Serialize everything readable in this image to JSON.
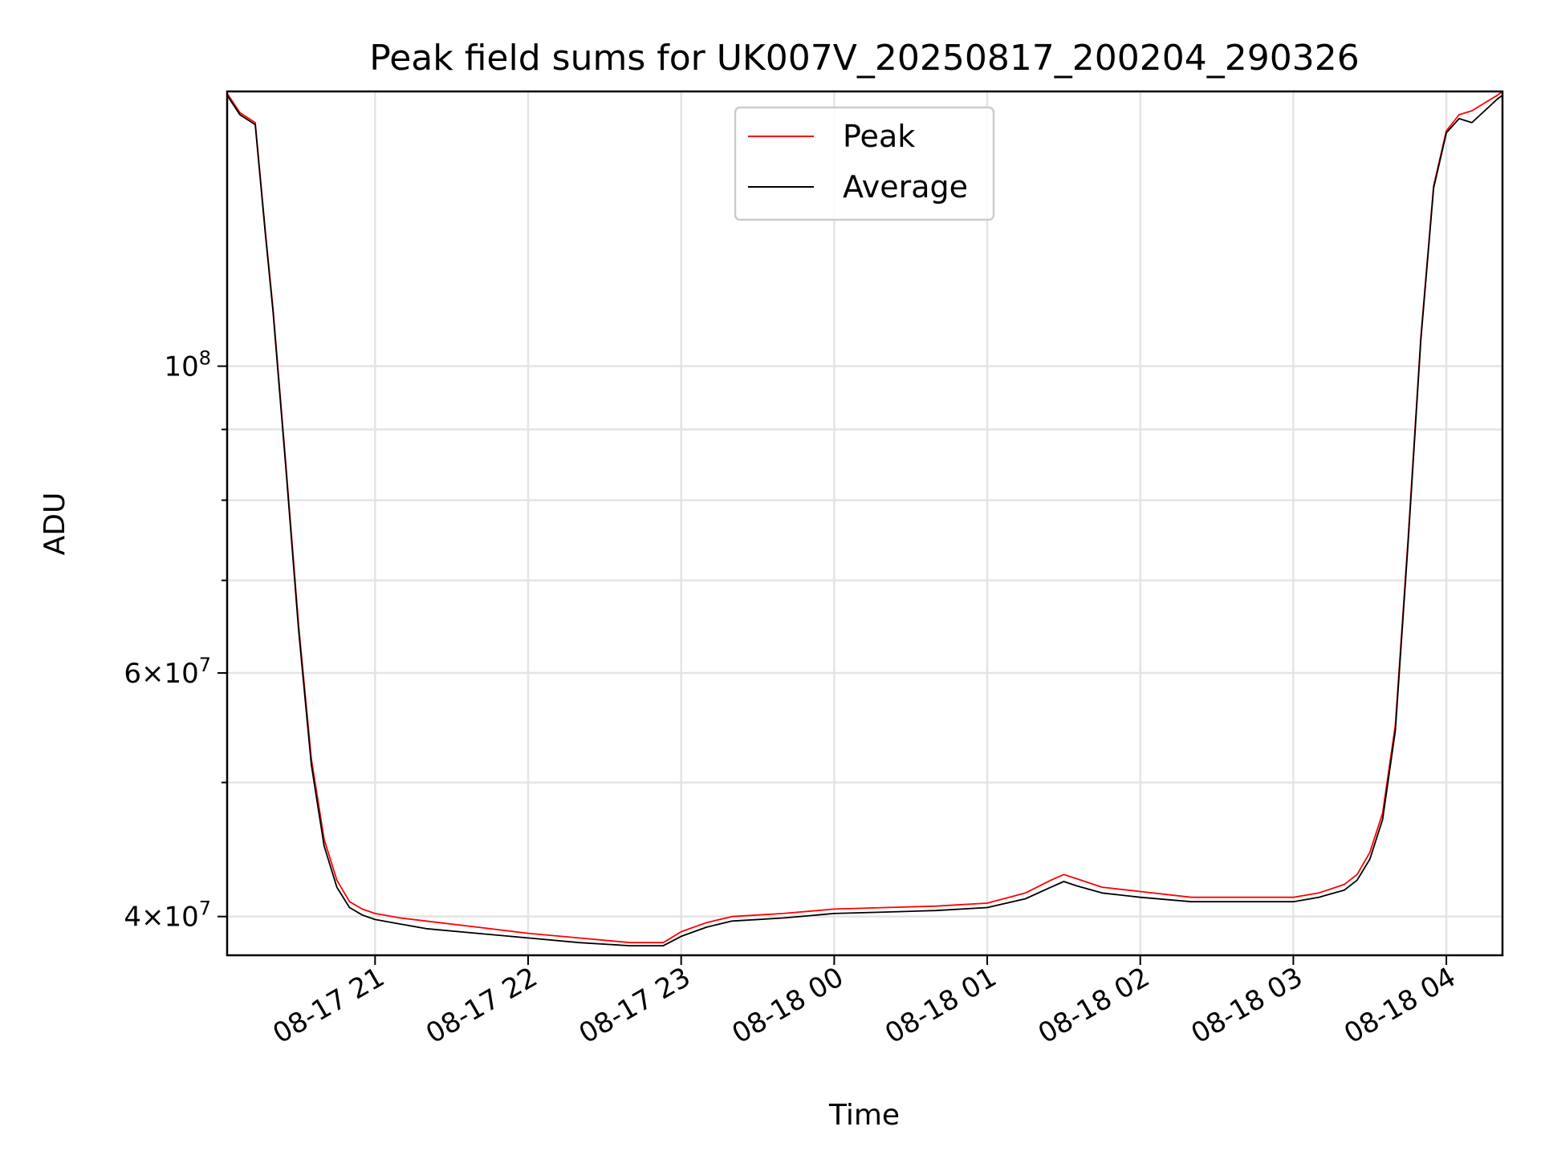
{
  "chart_data": {
    "type": "line",
    "title": "Peak field sums for UK007V_20250817_200204_290326",
    "xlabel": "Time",
    "ylabel": "ADU",
    "yscale": "log",
    "grid": true,
    "legend_position": "upper-center",
    "xlim": [
      "2025-08-17 20:02",
      "2025-08-18 04:22"
    ],
    "ylim": [
      37500000,
      158000000
    ],
    "x_ticks": [
      {
        "label": "08-17 21",
        "value": "2025-08-17 21:00"
      },
      {
        "label": "08-17 22",
        "value": "2025-08-17 22:00"
      },
      {
        "label": "08-17 23",
        "value": "2025-08-17 23:00"
      },
      {
        "label": "08-18 00",
        "value": "2025-08-18 00:00"
      },
      {
        "label": "08-18 01",
        "value": "2025-08-18 01:00"
      },
      {
        "label": "08-18 02",
        "value": "2025-08-18 02:00"
      },
      {
        "label": "08-18 03",
        "value": "2025-08-18 03:00"
      },
      {
        "label": "08-18 04",
        "value": "2025-08-18 04:00"
      }
    ],
    "y_ticks": [
      {
        "value": 40000000,
        "base": "4×10",
        "exp": "7"
      },
      {
        "value": 60000000,
        "base": "6×10",
        "exp": "7"
      },
      {
        "value": 100000000,
        "base": "10",
        "exp": "8"
      }
    ],
    "y_minor_ticks": [
      50000000,
      70000000,
      80000000,
      90000000
    ],
    "series": [
      {
        "name": "Peak",
        "color": "#ff0000",
        "x": [
          "2025-08-17 20:02",
          "2025-08-17 20:07",
          "2025-08-17 20:13",
          "2025-08-17 20:17",
          "2025-08-17 20:20",
          "2025-08-17 20:25",
          "2025-08-17 20:30",
          "2025-08-17 20:35",
          "2025-08-17 20:40",
          "2025-08-17 20:45",
          "2025-08-17 20:50",
          "2025-08-17 20:55",
          "2025-08-17 21:00",
          "2025-08-17 21:10",
          "2025-08-17 21:20",
          "2025-08-17 21:40",
          "2025-08-17 22:00",
          "2025-08-17 22:20",
          "2025-08-17 22:40",
          "2025-08-17 22:53",
          "2025-08-17 23:00",
          "2025-08-17 23:10",
          "2025-08-17 23:20",
          "2025-08-17 23:40",
          "2025-08-18 00:00",
          "2025-08-18 00:20",
          "2025-08-18 00:40",
          "2025-08-18 01:00",
          "2025-08-18 01:15",
          "2025-08-18 01:25",
          "2025-08-18 01:30",
          "2025-08-18 01:35",
          "2025-08-18 01:45",
          "2025-08-18 02:00",
          "2025-08-18 02:20",
          "2025-08-18 02:40",
          "2025-08-18 03:00",
          "2025-08-18 03:10",
          "2025-08-18 03:20",
          "2025-08-18 03:25",
          "2025-08-18 03:30",
          "2025-08-18 03:35",
          "2025-08-18 03:40",
          "2025-08-18 03:45",
          "2025-08-18 03:50",
          "2025-08-18 03:55",
          "2025-08-18 04:00",
          "2025-08-18 04:05",
          "2025-08-18 04:10",
          "2025-08-18 04:15",
          "2025-08-18 04:20",
          "2025-08-18 04:22"
        ],
        "y": [
          157500000,
          152500000,
          150000000,
          125000000,
          110000000,
          85000000,
          65000000,
          52000000,
          45500000,
          42500000,
          41000000,
          40500000,
          40200000,
          39900000,
          39700000,
          39300000,
          38900000,
          38600000,
          38300000,
          38300000,
          39000000,
          39600000,
          40000000,
          40200000,
          40500000,
          40600000,
          40700000,
          40900000,
          41600000,
          42500000,
          42900000,
          42600000,
          42000000,
          41700000,
          41300000,
          41300000,
          41300000,
          41600000,
          42200000,
          42900000,
          44500000,
          47500000,
          55000000,
          75000000,
          105000000,
          135000000,
          148000000,
          152000000,
          153000000,
          155000000,
          157000000,
          158000000
        ]
      },
      {
        "name": "Average",
        "color": "#000000",
        "x": [
          "2025-08-17 20:02",
          "2025-08-17 20:07",
          "2025-08-17 20:13",
          "2025-08-17 20:17",
          "2025-08-17 20:20",
          "2025-08-17 20:25",
          "2025-08-17 20:30",
          "2025-08-17 20:35",
          "2025-08-17 20:40",
          "2025-08-17 20:45",
          "2025-08-17 20:50",
          "2025-08-17 20:55",
          "2025-08-17 21:00",
          "2025-08-17 21:10",
          "2025-08-17 21:20",
          "2025-08-17 21:40",
          "2025-08-17 22:00",
          "2025-08-17 22:20",
          "2025-08-17 22:40",
          "2025-08-17 22:53",
          "2025-08-17 23:00",
          "2025-08-17 23:10",
          "2025-08-17 23:20",
          "2025-08-17 23:40",
          "2025-08-18 00:00",
          "2025-08-18 00:20",
          "2025-08-18 00:40",
          "2025-08-18 01:00",
          "2025-08-18 01:15",
          "2025-08-18 01:25",
          "2025-08-18 01:30",
          "2025-08-18 01:35",
          "2025-08-18 01:45",
          "2025-08-18 02:00",
          "2025-08-18 02:20",
          "2025-08-18 02:40",
          "2025-08-18 03:00",
          "2025-08-18 03:10",
          "2025-08-18 03:20",
          "2025-08-18 03:25",
          "2025-08-18 03:30",
          "2025-08-18 03:35",
          "2025-08-18 03:40",
          "2025-08-18 03:45",
          "2025-08-18 03:50",
          "2025-08-18 03:55",
          "2025-08-18 04:00",
          "2025-08-18 04:05",
          "2025-08-18 04:10",
          "2025-08-18 04:15",
          "2025-08-18 04:20",
          "2025-08-18 04:22"
        ],
        "y": [
          157000000,
          152000000,
          149500000,
          124500000,
          109500000,
          84500000,
          64500000,
          51500000,
          45000000,
          42000000,
          40600000,
          40100000,
          39800000,
          39500000,
          39200000,
          38900000,
          38600000,
          38300000,
          38100000,
          38100000,
          38700000,
          39300000,
          39700000,
          39900000,
          40200000,
          40300000,
          40400000,
          40600000,
          41200000,
          42000000,
          42400000,
          42100000,
          41600000,
          41300000,
          41000000,
          41000000,
          41000000,
          41300000,
          41800000,
          42500000,
          44000000,
          47000000,
          54500000,
          74500000,
          104500000,
          134500000,
          147500000,
          151000000,
          150000000,
          153000000,
          156000000,
          157000000
        ]
      }
    ]
  }
}
